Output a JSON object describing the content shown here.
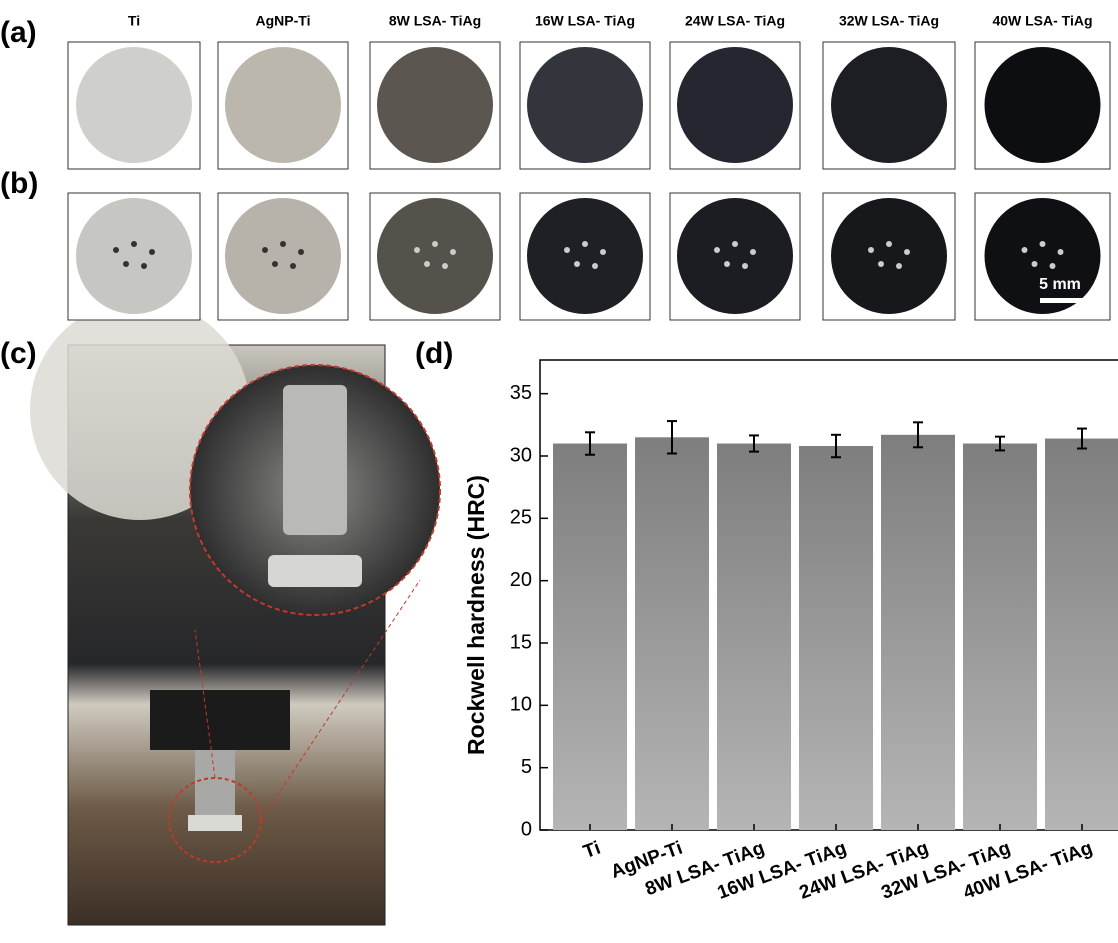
{
  "panel_labels": [
    "(a)",
    "(b)",
    "(c)",
    "(d)"
  ],
  "sample_labels": [
    "Ti",
    "AgNP-Ti",
    "8W LSA- TiAg",
    "16W LSA- TiAg",
    "24W LSA- TiAg",
    "32W LSA- TiAg",
    "40W LSA- TiAg"
  ],
  "scale_bar": "5 mm",
  "chart_data": {
    "type": "bar",
    "y_label": "Rockwell hardness (HRC)",
    "categories": [
      "Ti",
      "AgNP-Ti",
      "8W LSA- TiAg",
      "16W LSA- TiAg",
      "24W LSA- TiAg",
      "32W LSA- TiAg",
      "40W LSA- TiAg"
    ],
    "values": [
      31.0,
      31.5,
      31.0,
      30.8,
      31.7,
      31.0,
      31.4
    ],
    "errors": [
      0.9,
      1.3,
      0.65,
      0.9,
      1.0,
      0.55,
      0.8
    ],
    "ylim": [
      0,
      37.7
    ],
    "yticks": [
      0,
      5,
      10,
      15,
      20,
      25,
      30,
      35
    ],
    "color": "#8c8c8c"
  }
}
